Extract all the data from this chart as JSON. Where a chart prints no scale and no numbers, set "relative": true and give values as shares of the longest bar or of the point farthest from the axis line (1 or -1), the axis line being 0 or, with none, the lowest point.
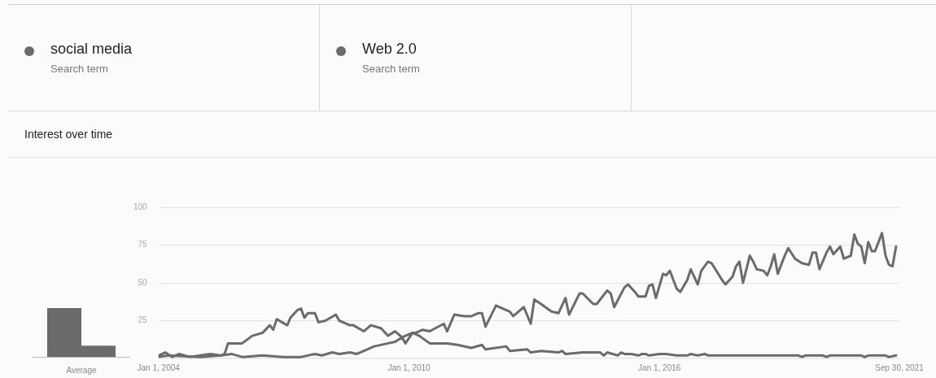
{
  "chart_data": [
    {
      "type": "bar",
      "categories": [
        "Average"
      ],
      "relative": true,
      "series": [
        {
          "color": "#6b6b6b",
          "values": [
            1
          ]
        },
        {
          "color": "#6b6b6b",
          "values": [
            0.23
          ]
        }
      ]
    },
    {
      "type": "line",
      "title": "Interest over time",
      "legend": "top left",
      "marker": "none",
      "grid": "y",
      "annotations": [
        "Search term",
        "Search term"
      ],
      "xlim": [
        "2004-01-01",
        "2021-09-30"
      ],
      "xticks": [
        {
          "value": "2004-01-01",
          "label": "Jan 1, 2004"
        },
        {
          "value": "2010-01-01",
          "label": "Jan 1, 2010"
        },
        {
          "value": "2016-01-01",
          "label": "Jan 1, 2016"
        },
        {
          "value": "2021-09-30",
          "label": "Sep 30, 2021"
        }
      ],
      "ylim": [
        0,
        100
      ],
      "yticks": [
        {
          "value": 0,
          "label": null
        },
        25,
        50,
        75,
        100
      ],
      "series": [
        {
          "name": "social media",
          "color": "#6b6b6b",
          "x": [
            "2004-01",
            "2004-04",
            "2005-01",
            "2005-07",
            "2005-10",
            "2006-01",
            "2006-07",
            "2007-01",
            "2007-06",
            "2007-10",
            "2007-12",
            "2008-03",
            "2008-05",
            "2008-08",
            "2008-10",
            "2009-01",
            "2009-03",
            "2009-07",
            "2009-09",
            "2009-11",
            "2009-12",
            "2010-02",
            "2010-03",
            "2010-05",
            "2010-07",
            "2010-11",
            "2010-12",
            "2011-02",
            "2011-05",
            "2011-07",
            "2011-09",
            "2011-10",
            "2011-11",
            "2012-02",
            "2012-04",
            "2012-06",
            "2012-07",
            "2012-10",
            "2012-12",
            "2013-01",
            "2013-03",
            "2013-06",
            "2013-08",
            "2013-10",
            "2013-11",
            "2014-02",
            "2014-03",
            "2014-06",
            "2014-07",
            "2014-10",
            "2014-11",
            "2014-12",
            "2015-03",
            "2015-04",
            "2015-06",
            "2015-07",
            "2015-09",
            "2015-10",
            "2015-11",
            "2015-12",
            "2016-02",
            "2016-03",
            "2016-04",
            "2016-06",
            "2016-07",
            "2016-09",
            "2016-10",
            "2016-12",
            "2017-01",
            "2017-03",
            "2017-04",
            "2017-07",
            "2017-08",
            "2017-10",
            "2017-11",
            "2017-12",
            "2018-01",
            "2018-03",
            "2018-04",
            "2018-05",
            "2018-07",
            "2018-08",
            "2018-09",
            "2018-10",
            "2018-11",
            "2019-01",
            "2019-02",
            "2019-04",
            "2019-06",
            "2019-08",
            "2019-09",
            "2019-10",
            "2019-11",
            "2020-01",
            "2020-02",
            "2020-03",
            "2020-05",
            "2020-06",
            "2020-08",
            "2020-09",
            "2020-10",
            "2020-11",
            "2020-12",
            "2021-01",
            "2021-02",
            "2021-03",
            "2021-05",
            "2021-06",
            "2021-07",
            "2021-08",
            "2021-09"
          ],
          "values": [
            1,
            2,
            1,
            2,
            3,
            1,
            2,
            1,
            1,
            3,
            2,
            4,
            3,
            4,
            3,
            6,
            8,
            10,
            11,
            14,
            10,
            17,
            17,
            19,
            18,
            23,
            18,
            29,
            28,
            28,
            30,
            30,
            21,
            35,
            33,
            31,
            28,
            34,
            23,
            39,
            36,
            31,
            30,
            40,
            29,
            43,
            43,
            36,
            36,
            45,
            43,
            34,
            47,
            49,
            44,
            41,
            41,
            48,
            49,
            40,
            56,
            55,
            58,
            46,
            44,
            52,
            59,
            49,
            58,
            64,
            63,
            52,
            49,
            54,
            61,
            64,
            50,
            68,
            64,
            59,
            58,
            55,
            61,
            69,
            56,
            68,
            73,
            66,
            63,
            62,
            70,
            70,
            59,
            70,
            74,
            69,
            74,
            66,
            68,
            82,
            76,
            74,
            63,
            77,
            71,
            71,
            83,
            68,
            62,
            61,
            74
          ]
        },
        {
          "name": "Web 2.0",
          "color": "#6b6b6b",
          "x": [
            "2004-01",
            "2004-03",
            "2004-05",
            "2004-07",
            "2004-10",
            "2005-01",
            "2005-04",
            "2005-07",
            "2005-08",
            "2005-09",
            "2006-01",
            "2006-04",
            "2006-07",
            "2006-09",
            "2006-10",
            "2006-11",
            "2007-02",
            "2007-03",
            "2007-05",
            "2007-06",
            "2007-07",
            "2007-08",
            "2007-10",
            "2007-11",
            "2008-01",
            "2008-04",
            "2008-05",
            "2008-08",
            "2008-09",
            "2008-12",
            "2009-01",
            "2009-02",
            "2009-05",
            "2009-07",
            "2009-09",
            "2009-11",
            "2010-02",
            "2010-04",
            "2010-07",
            "2010-09",
            "2010-12",
            "2011-03",
            "2011-07",
            "2011-10",
            "2011-11",
            "2012-05",
            "2012-06",
            "2012-11",
            "2012-12",
            "2013-03",
            "2013-08",
            "2013-09",
            "2013-10",
            "2014-03",
            "2014-08",
            "2014-09",
            "2014-10",
            "2015-01",
            "2015-02",
            "2015-03",
            "2015-05",
            "2015-07",
            "2015-08",
            "2015-09",
            "2015-10",
            "2016-01",
            "2016-03",
            "2016-06",
            "2016-09",
            "2016-10",
            "2016-12",
            "2017-02",
            "2017-03",
            "2019-05",
            "2019-06",
            "2019-07",
            "2019-12",
            "2020-01",
            "2020-02",
            "2020-11",
            "2020-12",
            "2021-01",
            "2021-06",
            "2021-07",
            "2021-09"
          ],
          "values": [
            2,
            4,
            1,
            3,
            1,
            2,
            3,
            2,
            3,
            10,
            10,
            15,
            17,
            22,
            19,
            26,
            22,
            27,
            32,
            33,
            27,
            30,
            30,
            24,
            25,
            29,
            25,
            22,
            22,
            18,
            20,
            22,
            20,
            15,
            18,
            14,
            17,
            15,
            10,
            10,
            10,
            9,
            7,
            9,
            6,
            8,
            5,
            6,
            4,
            5,
            4,
            5,
            3,
            4,
            4,
            2,
            4,
            2,
            4,
            3,
            3,
            2,
            3,
            3,
            2,
            3,
            3,
            2,
            2,
            3,
            2,
            3,
            2,
            2,
            1,
            2,
            2,
            1,
            2,
            2,
            1,
            2,
            2,
            1,
            2
          ]
        }
      ]
    }
  ]
}
